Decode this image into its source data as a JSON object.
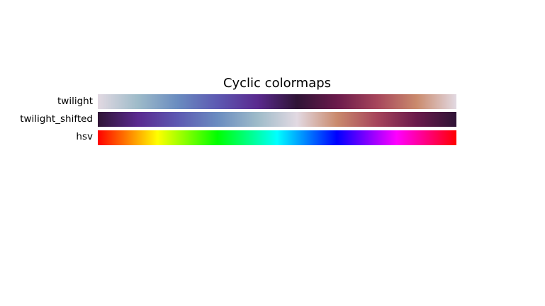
{
  "chart_data": {
    "type": "heatmap",
    "title": "Cyclic colormaps",
    "colormaps": [
      {
        "name": "twilight",
        "colors": [
          "#e2d9e2",
          "#9ebbc9",
          "#6a8cc0",
          "#5d59b2",
          "#5a2a8f",
          "#2f1436",
          "#6a1a4b",
          "#a6455b",
          "#ca8a6d",
          "#e2d9e2"
        ]
      },
      {
        "name": "twilight_shifted",
        "colors": [
          "#2f1436",
          "#5a2a8f",
          "#5d59b2",
          "#6a8cc0",
          "#9ebbc9",
          "#e2d9e2",
          "#ca8a6d",
          "#a6455b",
          "#6a1a4b",
          "#2f1436"
        ]
      },
      {
        "name": "hsv",
        "colors": [
          "#ff0000",
          "#ffff00",
          "#00ff00",
          "#00ffff",
          "#0000ff",
          "#ff00ff",
          "#ff0000"
        ]
      }
    ]
  }
}
